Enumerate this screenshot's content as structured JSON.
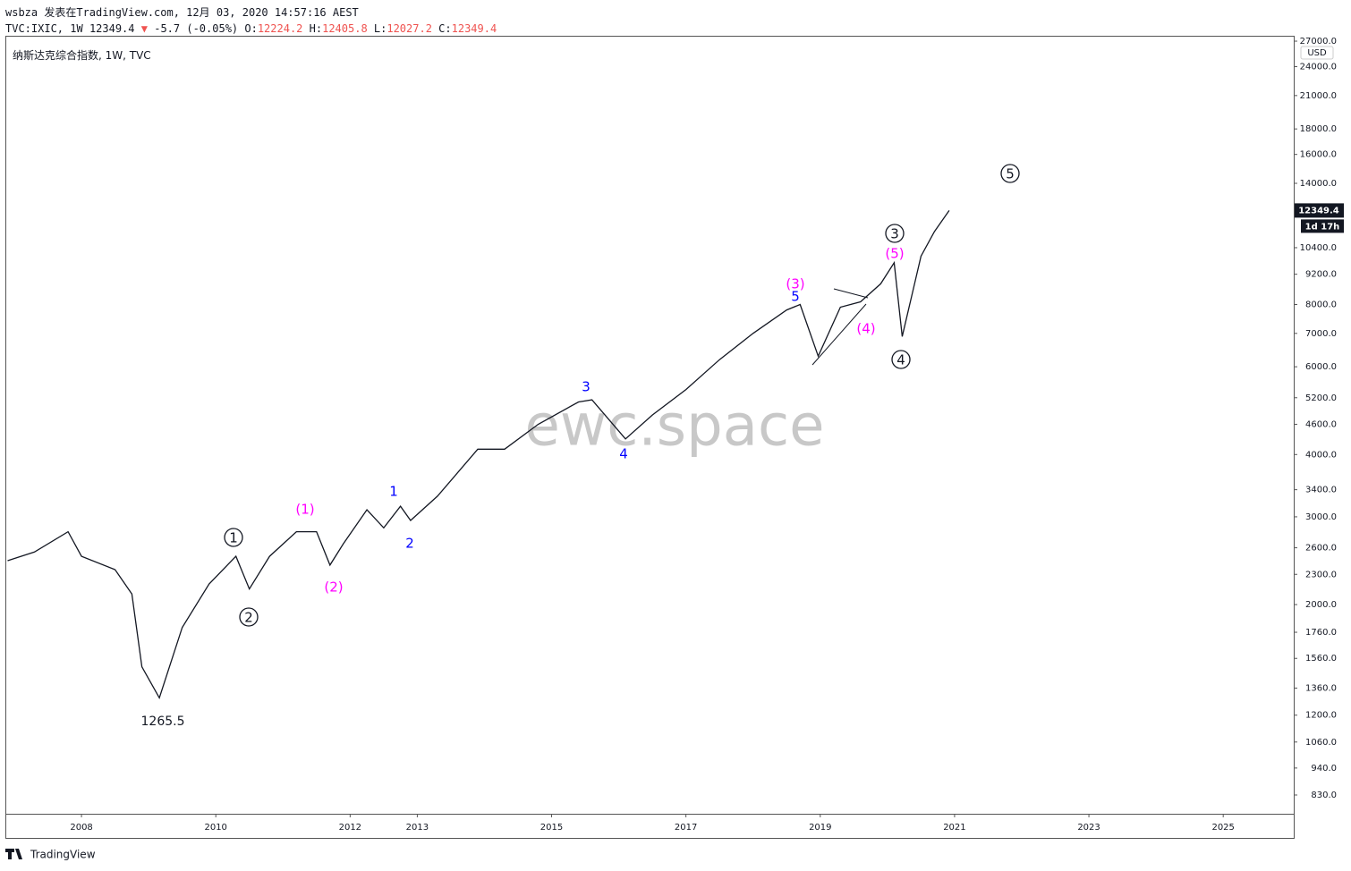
{
  "header": {
    "line1": "wsbza 发表在TradingView.com, 12月 03, 2020 14:57:16 AEST",
    "symbol": "TVC:IXIC, 1W",
    "last": "12349.4",
    "arrow": "▼",
    "change": "-5.7 (-0.05%)",
    "o_label": "O:",
    "o_value": "12224.2",
    "h_label": "H:",
    "h_value": "12405.8",
    "l_label": "L:",
    "l_value": "12027.2",
    "c_label": "C:",
    "c_value": "12349.4"
  },
  "chart_data": {
    "type": "line",
    "title": "纳斯达克综合指数, 1W, TVC",
    "color": "#131722",
    "log_scale": true,
    "currency": "USD",
    "last_price_label": "12349.4",
    "countdown": "1d 17h",
    "watermark": "ewc.space",
    "x": [
      2006.9,
      2007.3,
      2007.8,
      2008.0,
      2008.5,
      2008.75,
      2008.9,
      2009.16,
      2009.5,
      2009.9,
      2010.3,
      2010.5,
      2010.8,
      2011.2,
      2011.5,
      2011.7,
      2011.9,
      2012.25,
      2012.5,
      2012.75,
      2012.9,
      2013.3,
      2013.9,
      2014.3,
      2014.8,
      2015.4,
      2015.6,
      2016.1,
      2016.5,
      2017.0,
      2017.5,
      2018.0,
      2018.5,
      2018.7,
      2018.97,
      2019.3,
      2019.6,
      2019.9,
      2020.1,
      2020.22,
      2020.5,
      2020.7,
      2020.92
    ],
    "values": [
      2450,
      2550,
      2800,
      2500,
      2350,
      2100,
      1500,
      1300,
      1800,
      2200,
      2500,
      2150,
      2500,
      2800,
      2800,
      2400,
      2650,
      3100,
      2850,
      3150,
      2950,
      3300,
      4100,
      4100,
      4600,
      5100,
      5150,
      4300,
      4800,
      5400,
      6200,
      7000,
      7800,
      8000,
      6300,
      7900,
      8100,
      8800,
      9700,
      6900,
      10000,
      11200,
      12349.4
    ],
    "xlim": [
      2006.88,
      2026.05
    ],
    "xticks": [
      2008,
      2010,
      2012,
      2013,
      2015,
      2017,
      2019,
      2021,
      2023,
      2025
    ],
    "ylim": [
      761,
      27680
    ],
    "yticks": [
      {
        "value": 830,
        "label": "830.0"
      },
      {
        "value": 940,
        "label": "940.0"
      },
      {
        "value": 1060,
        "label": "1060.0"
      },
      {
        "value": 1200,
        "label": "1200.0"
      },
      {
        "value": 1360,
        "label": "1360.0"
      },
      {
        "value": 1560,
        "label": "1560.0"
      },
      {
        "value": 1760,
        "label": "1760.0"
      },
      {
        "value": 2000,
        "label": "2000.0"
      },
      {
        "value": 2300,
        "label": "2300.0"
      },
      {
        "value": 2600,
        "label": "2600.0"
      },
      {
        "value": 3000,
        "label": "3000.0"
      },
      {
        "value": 3400,
        "label": "3400.0"
      },
      {
        "value": 4000,
        "label": "4000.0"
      },
      {
        "value": 4600,
        "label": "4600.0"
      },
      {
        "value": 5200,
        "label": "5200.0"
      },
      {
        "value": 6000,
        "label": "6000.0"
      },
      {
        "value": 7000,
        "label": "7000.0"
      },
      {
        "value": 8000,
        "label": "8000.0"
      },
      {
        "value": 9200,
        "label": "9200.0"
      },
      {
        "value": 10400,
        "label": "10400.0"
      },
      {
        "value": 14000,
        "label": "14000.0"
      },
      {
        "value": 16000,
        "label": "16000.0"
      },
      {
        "value": 18000,
        "label": "18000.0"
      },
      {
        "value": 21000,
        "label": "21000.0"
      },
      {
        "value": 24000,
        "label": "24000.0"
      },
      {
        "value": 27000,
        "label": "27000.0"
      }
    ],
    "annotations": {
      "circled": {
        "color": "#131722",
        "texts": [
          "1",
          "2",
          "3",
          "4",
          "5"
        ]
      },
      "intermediate": {
        "color": "#ff00ff",
        "texts": [
          "(1)",
          "(2)",
          "(3)",
          "(4)",
          "(5)"
        ]
      },
      "minor": {
        "color": "#0000ff",
        "texts": [
          "1",
          "2",
          "3",
          "4",
          "5"
        ]
      },
      "low": "1265.5"
    }
  },
  "footer": {
    "brand": "TradingView"
  }
}
